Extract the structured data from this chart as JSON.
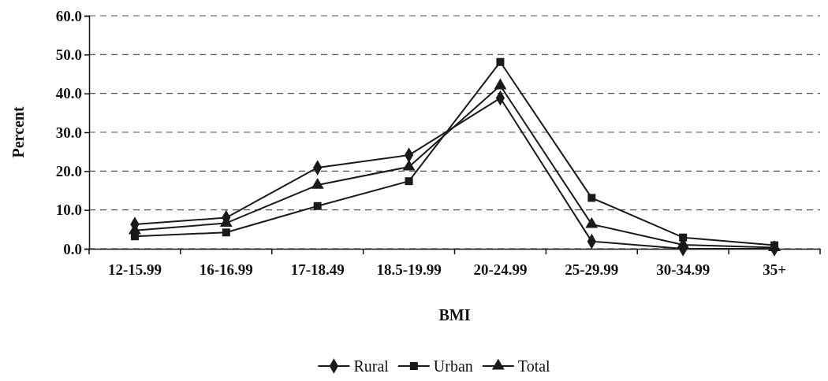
{
  "chart_data": {
    "type": "line",
    "xlabel": "BMI",
    "ylabel": "Percent",
    "categories": [
      "12-15.99",
      "16-16.99",
      "17-18.49",
      "18.5-19.99",
      "20-24.99",
      "25-29.99",
      "30-34.99",
      "35+"
    ],
    "series": [
      {
        "name": "Rural",
        "color": "#1a1a1a",
        "marker": "diamond",
        "values": [
          6.3,
          8.0,
          20.9,
          24.1,
          38.8,
          1.9,
          0.0,
          0.0
        ]
      },
      {
        "name": "Urban",
        "color": "#1a1a1a",
        "marker": "square",
        "values": [
          3.2,
          4.2,
          11.0,
          17.4,
          48.1,
          13.1,
          2.9,
          0.9
        ]
      },
      {
        "name": "Total",
        "color": "#1a1a1a",
        "marker": "triangle",
        "values": [
          4.7,
          6.6,
          16.4,
          21.1,
          42.0,
          6.3,
          1.0,
          0.3
        ]
      }
    ],
    "ylim": [
      0,
      60
    ],
    "yticks": [
      {
        "value": 0,
        "label": "0.0"
      },
      {
        "value": 10,
        "label": "10.0"
      },
      {
        "value": 20,
        "label": "20.0"
      },
      {
        "value": 30,
        "label": "30.0"
      },
      {
        "value": 40,
        "label": "40.0"
      },
      {
        "value": 50,
        "label": "50.0"
      },
      {
        "value": 60,
        "label": "60.0"
      }
    ],
    "grid": "y",
    "legend": "bottom"
  }
}
